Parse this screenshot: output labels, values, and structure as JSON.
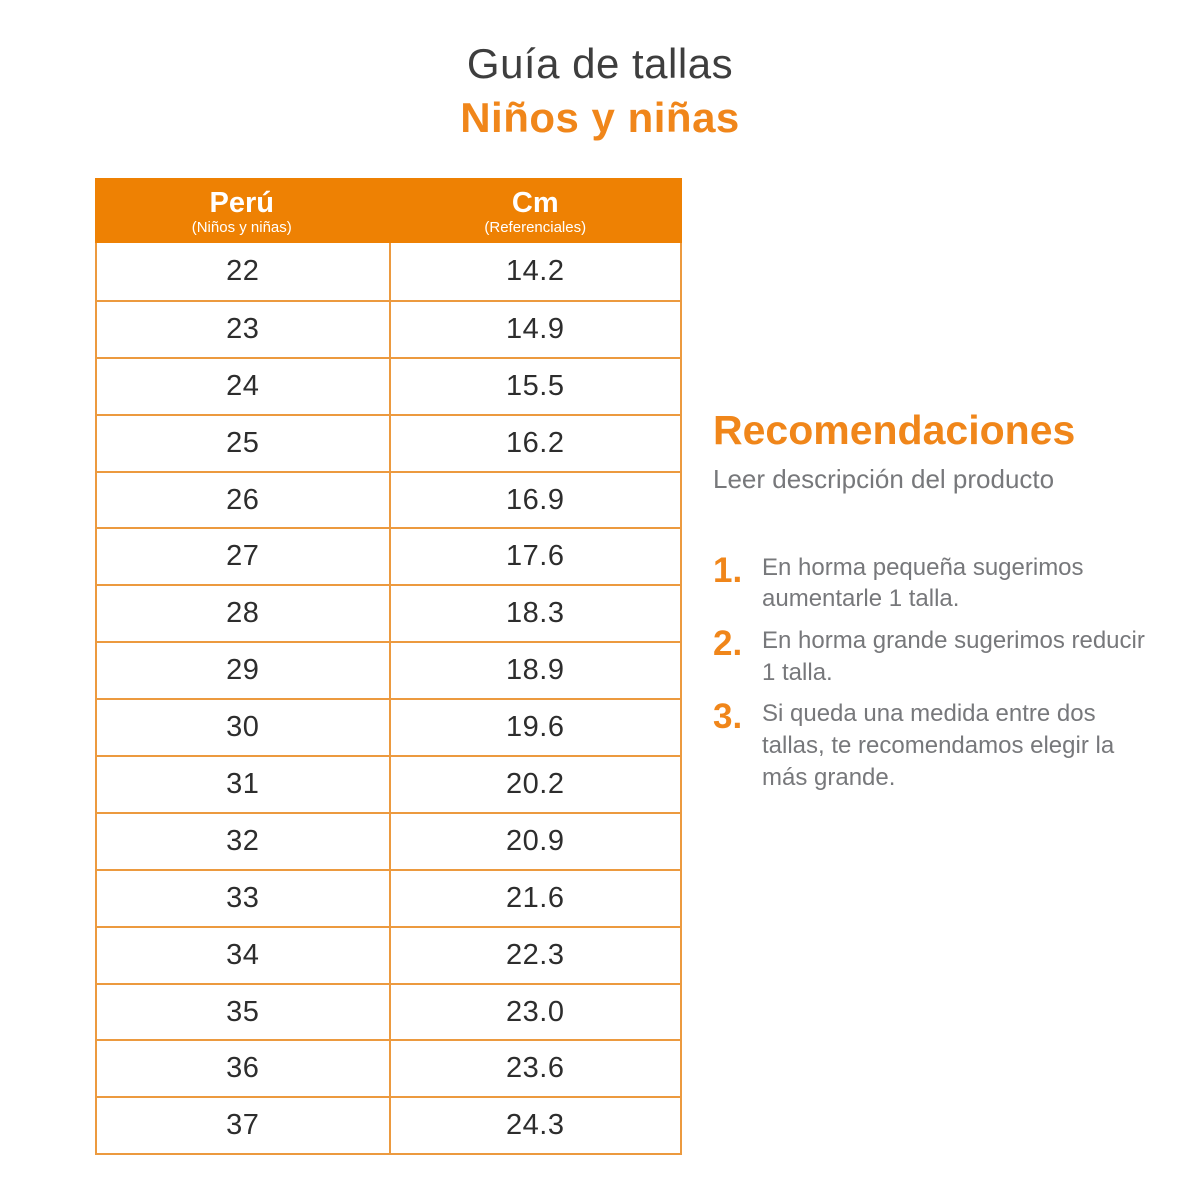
{
  "page": {
    "title": "Guía de tallas",
    "subtitle": "Niños y niñas"
  },
  "colors": {
    "header_orange": "#EE8103",
    "accent_orange_text": "#F0861A",
    "table_border_orange": "#EC9A3F",
    "title_dark": "#3E3E3E",
    "body_gray": "#77787B"
  },
  "table": {
    "columns": [
      {
        "label": "Perú",
        "sublabel": "(Niños y niñas)"
      },
      {
        "label": "Cm",
        "sublabel": "(Referenciales)"
      }
    ],
    "rows": [
      {
        "peru": "22",
        "cm": "14.2"
      },
      {
        "peru": "23",
        "cm": "14.9"
      },
      {
        "peru": "24",
        "cm": "15.5"
      },
      {
        "peru": "25",
        "cm": "16.2"
      },
      {
        "peru": "26",
        "cm": "16.9"
      },
      {
        "peru": "27",
        "cm": "17.6"
      },
      {
        "peru": "28",
        "cm": "18.3"
      },
      {
        "peru": "29",
        "cm": "18.9"
      },
      {
        "peru": "30",
        "cm": "19.6"
      },
      {
        "peru": "31",
        "cm": "20.2"
      },
      {
        "peru": "32",
        "cm": "20.9"
      },
      {
        "peru": "33",
        "cm": "21.6"
      },
      {
        "peru": "34",
        "cm": "22.3"
      },
      {
        "peru": "35",
        "cm": "23.0"
      },
      {
        "peru": "36",
        "cm": "23.6"
      },
      {
        "peru": "37",
        "cm": "24.3"
      }
    ]
  },
  "recommendations": {
    "title": "Recomendaciones",
    "subtitle": "Leer descripción del producto",
    "items": [
      {
        "number": "1.",
        "text": "En horma pequeña sugerimos aumentarle 1 talla."
      },
      {
        "number": "2.",
        "text": "En horma grande sugerimos reducir 1 talla."
      },
      {
        "number": "3.",
        "text": "Si queda una medida entre dos tallas, te recomendamos elegir la más grande."
      }
    ]
  },
  "chart_data": {
    "type": "table",
    "title": "Guía de tallas - Niños y niñas",
    "columns": [
      "Perú (Niños y niñas)",
      "Cm (Referenciales)"
    ],
    "rows": [
      [
        22,
        14.2
      ],
      [
        23,
        14.9
      ],
      [
        24,
        15.5
      ],
      [
        25,
        16.2
      ],
      [
        26,
        16.9
      ],
      [
        27,
        17.6
      ],
      [
        28,
        18.3
      ],
      [
        29,
        18.9
      ],
      [
        30,
        19.6
      ],
      [
        31,
        20.2
      ],
      [
        32,
        20.9
      ],
      [
        33,
        21.6
      ],
      [
        34,
        22.3
      ],
      [
        35,
        23.0
      ],
      [
        36,
        23.6
      ],
      [
        37,
        24.3
      ]
    ]
  }
}
